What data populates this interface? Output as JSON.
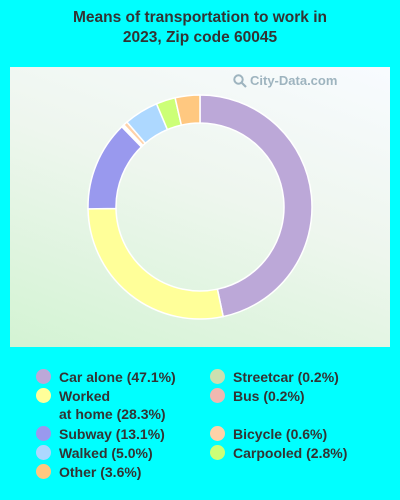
{
  "title_line1": "Means of transportation to work in",
  "title_line2": "2023, Zip code 60045",
  "watermark": "City-Data.com",
  "colors": {
    "background": "#00FFFF"
  },
  "chart_data": {
    "type": "pie",
    "style": "donut",
    "title": "Means of transportation to work in 2023, Zip code 60045",
    "legend_position": "bottom",
    "series": [
      {
        "name": "Car alone",
        "value": 47.1,
        "label": "Car alone (47.1%)",
        "color": "#bca8d8"
      },
      {
        "name": "Worked at home",
        "value": 28.3,
        "label_lines": [
          "Worked",
          "at home (28.3%)"
        ],
        "color": "#ffff99"
      },
      {
        "name": "Subway",
        "value": 13.1,
        "label": "Subway (13.1%)",
        "color": "#9999ee"
      },
      {
        "name": "Streetcar",
        "value": 0.2,
        "label": "Streetcar (0.2%)",
        "color": "#cce0b0"
      },
      {
        "name": "Bus",
        "value": 0.2,
        "label": "Bus (0.2%)",
        "color": "#f0b8b0"
      },
      {
        "name": "Bicycle",
        "value": 0.6,
        "label": "Bicycle (0.6%)",
        "color": "#ffd2a8"
      },
      {
        "name": "Walked",
        "value": 5.0,
        "label": "Walked (5.0%)",
        "color": "#add8ff"
      },
      {
        "name": "Carpooled",
        "value": 2.8,
        "label": "Carpooled (2.8%)",
        "color": "#ccff77"
      },
      {
        "name": "Other",
        "value": 3.6,
        "label": "Other (3.6%)",
        "color": "#ffc880"
      }
    ]
  }
}
